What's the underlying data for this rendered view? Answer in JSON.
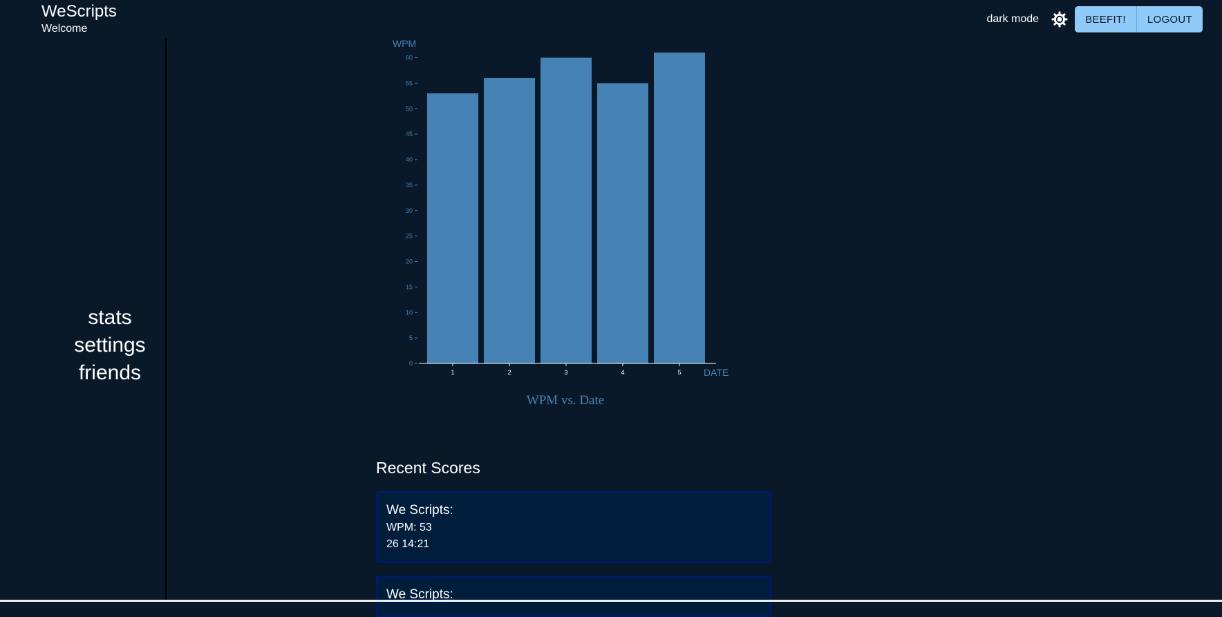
{
  "header": {
    "title": "WeScripts",
    "welcome": "Welcome",
    "mode_label": "dark mode",
    "theme_icon": "sun-icon",
    "buttons": {
      "beefit": "BEEFIT!",
      "logout": "LOGOUT"
    }
  },
  "sidebar": {
    "items": [
      {
        "label": "stats"
      },
      {
        "label": "settings"
      },
      {
        "label": "friends"
      }
    ]
  },
  "colors": {
    "background": "#0a1929",
    "bar": "#4682b4",
    "axis_text": "#4682b4",
    "button": "#90caf9",
    "card": "#001e3c"
  },
  "chart_data": {
    "type": "bar",
    "title": "WPM vs. Date",
    "xlabel": "DATE",
    "ylabel": "WPM",
    "categories": [
      "1",
      "2",
      "3",
      "4",
      "5"
    ],
    "values": [
      53,
      56,
      60,
      55,
      61
    ],
    "ylim": [
      0,
      60
    ],
    "yticks": [
      "0",
      "5",
      "10",
      "15",
      "20",
      "25",
      "30",
      "35",
      "40",
      "45",
      "50",
      "55",
      "60"
    ],
    "grid": false
  },
  "recent": {
    "title": "Recent Scores",
    "scores": [
      {
        "title": "We Scripts:",
        "wpm": "WPM: 53",
        "date": "26 14:21"
      },
      {
        "title": "We Scripts:"
      }
    ]
  }
}
